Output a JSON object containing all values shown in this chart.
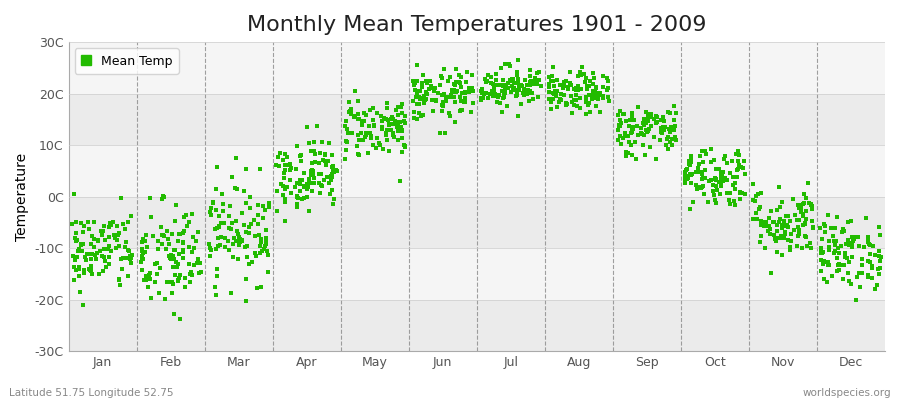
{
  "title": "Monthly Mean Temperatures 1901 - 2009",
  "ylabel": "Temperature",
  "ylim": [
    -30,
    30
  ],
  "yticks": [
    -30,
    -20,
    -10,
    0,
    10,
    20,
    30
  ],
  "ytick_labels": [
    "-30C",
    "-20C",
    "-10C",
    "0C",
    "10C",
    "20C",
    "30C"
  ],
  "months": [
    "Jan",
    "Feb",
    "Mar",
    "Apr",
    "May",
    "Jun",
    "Jul",
    "Aug",
    "Sep",
    "Oct",
    "Nov",
    "Dec"
  ],
  "dot_color": "#22BB00",
  "dot_size": 5,
  "legend_label": "Mean Temp",
  "bottom_left_text": "Latitude 51.75 Longitude 52.75",
  "bottom_right_text": "worldspecies.org",
  "fig_bg_color": "#ffffff",
  "plot_bg_color": "#ffffff",
  "band_colors": [
    "#ebebeb",
    "#f5f5f5"
  ],
  "title_fontsize": 16,
  "axis_fontsize": 10,
  "tick_fontsize": 9,
  "monthly_means": [
    -10.5,
    -12.0,
    -6.5,
    4.5,
    13.5,
    19.5,
    21.5,
    20.0,
    13.0,
    4.0,
    -5.0,
    -11.0
  ],
  "monthly_stds": [
    4.0,
    5.5,
    5.0,
    3.5,
    3.0,
    2.5,
    2.0,
    2.0,
    2.5,
    3.0,
    3.5,
    3.5
  ],
  "n_years": 109,
  "random_seed": 42
}
